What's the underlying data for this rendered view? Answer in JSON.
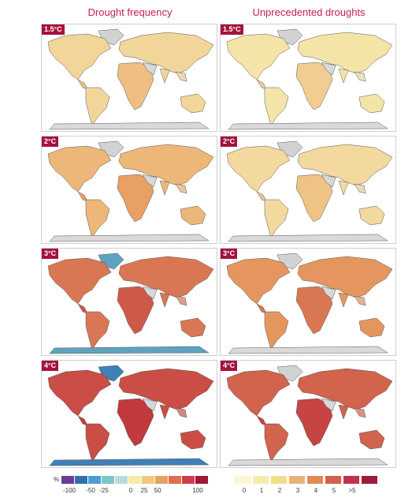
{
  "titles": {
    "left": "Drought frequency",
    "right": "Unprecedented droughts"
  },
  "rows": [
    {
      "label": "1.5°C",
      "left_level": 0.15,
      "right_level": 0.05
    },
    {
      "label": "2°C",
      "left_level": 0.35,
      "right_level": 0.12
    },
    {
      "label": "3°C",
      "left_level": 0.7,
      "right_level": 0.55
    },
    {
      "label": "4°C",
      "left_level": 0.9,
      "right_level": 0.8
    }
  ],
  "legend_left": {
    "unit": "%",
    "colors": [
      "#6a3d8f",
      "#2f6fb2",
      "#4a9fce",
      "#7fc4c9",
      "#b9dcd4",
      "#f5eaa6",
      "#f0c97a",
      "#e9a063",
      "#de6f50",
      "#cc3f4a",
      "#a4133c"
    ],
    "ticks": [
      "-100",
      "-50",
      "-25",
      "0",
      "25",
      "50",
      "100"
    ]
  },
  "legend_right": {
    "colors": [
      "#fbf5d5",
      "#f7ecac",
      "#f3dc8a",
      "#e9b279",
      "#e08a57",
      "#d4604b",
      "#c03248",
      "#9c1c3a"
    ],
    "ticks": [
      "0",
      "1",
      "2",
      "3",
      "4",
      "5",
      ">5"
    ]
  }
}
